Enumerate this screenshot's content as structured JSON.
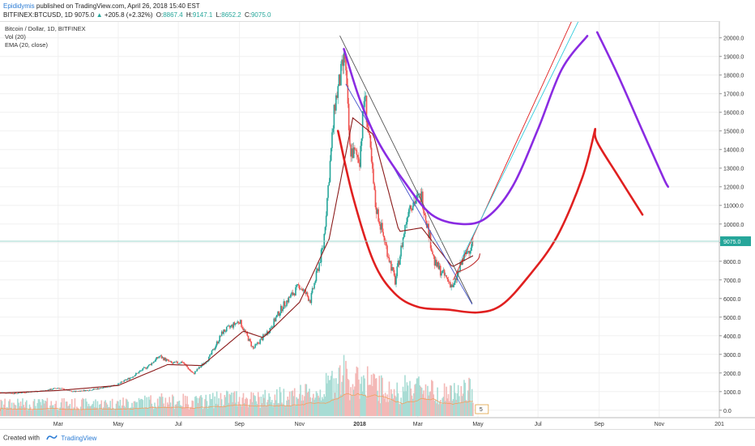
{
  "header": {
    "author": "Epididymis",
    "published_text": "published on TradingView.com, April 26, 2018 15:40 EST",
    "symbol": "BITFINEX:BTCUSD, 1D",
    "last": "9075.0",
    "change_arrow": "▲",
    "change": "+205.8 (+2.32%)",
    "open_label": "O:",
    "open": "8867.4",
    "high_label": "H:",
    "high": "9147.1",
    "low_label": "L:",
    "low": "8652.2",
    "close_label": "C:",
    "close": "9075.0"
  },
  "legend": {
    "title": "Bitcoin / Dollar, 1D, BITFINEX",
    "vol": "Vol (20)",
    "ema": "EMA (20, close)"
  },
  "footer": {
    "created_with": "Created with",
    "brand": "TradingView"
  },
  "colors": {
    "up": "#26a69a",
    "down": "#ef5350",
    "ema": "#8b1a1a",
    "purple": "#8a2be2",
    "red": "#e02020",
    "cyan": "#33ccdd",
    "price_label_bg": "#26a69a"
  },
  "chart_data": {
    "type": "candlestick",
    "symbol": "BITFINEX:BTCUSD",
    "interval": "1D",
    "y_ticks": [
      0,
      1000,
      2000,
      3000,
      4000,
      5000,
      6000,
      7000,
      8000,
      9000,
      10000,
      11000,
      12000,
      13000,
      14000,
      15000,
      16000,
      17000,
      18000,
      19000,
      20000
    ],
    "y_tick_labels": [
      "0.0",
      "1000.0",
      "2000.0",
      "3000.0",
      "4000.0",
      "5000.0",
      "6000.0",
      "7000.0",
      "8000.0",
      "9000.0",
      "10000.0",
      "11000.0",
      "12000.0",
      "13000.0",
      "14000.0",
      "15000.0",
      "16000.0",
      "17000.0",
      "18000.0",
      "19000.0",
      "20000.0"
    ],
    "ylim": [
      -400,
      20900
    ],
    "xlim": [
      "2017-01-01",
      "2019-01-01"
    ],
    "x_ticks": [
      {
        "label": "Mar",
        "date": "2017-03-01",
        "bold": false
      },
      {
        "label": "May",
        "date": "2017-05-01",
        "bold": false
      },
      {
        "label": "Jul",
        "date": "2017-07-01",
        "bold": false
      },
      {
        "label": "Sep",
        "date": "2017-09-01",
        "bold": false
      },
      {
        "label": "Nov",
        "date": "2017-11-01",
        "bold": false
      },
      {
        "label": "2018",
        "date": "2018-01-01",
        "bold": true
      },
      {
        "label": "Mar",
        "date": "2018-03-01",
        "bold": false
      },
      {
        "label": "May",
        "date": "2018-05-01",
        "bold": false
      },
      {
        "label": "Jul",
        "date": "2018-07-01",
        "bold": false
      },
      {
        "label": "Sep",
        "date": "2018-09-01",
        "bold": false
      },
      {
        "label": "Nov",
        "date": "2018-11-01",
        "bold": false
      },
      {
        "label": "201",
        "date": "2019-01-01",
        "bold": false
      }
    ],
    "last_price": 9075.0,
    "last_price_label": "9075.0",
    "price_path": [
      {
        "date": "2017-01-01",
        "price": 960
      },
      {
        "date": "2017-01-15",
        "price": 900
      },
      {
        "date": "2017-02-01",
        "price": 990
      },
      {
        "date": "2017-02-15",
        "price": 1050
      },
      {
        "date": "2017-03-01",
        "price": 1200
      },
      {
        "date": "2017-03-15",
        "price": 1000
      },
      {
        "date": "2017-04-01",
        "price": 1080
      },
      {
        "date": "2017-04-15",
        "price": 1200
      },
      {
        "date": "2017-05-01",
        "price": 1400
      },
      {
        "date": "2017-05-15",
        "price": 1800
      },
      {
        "date": "2017-06-01",
        "price": 2400
      },
      {
        "date": "2017-06-12",
        "price": 2900
      },
      {
        "date": "2017-06-25",
        "price": 2500
      },
      {
        "date": "2017-07-05",
        "price": 2600
      },
      {
        "date": "2017-07-16",
        "price": 1950
      },
      {
        "date": "2017-08-01",
        "price": 2800
      },
      {
        "date": "2017-08-15",
        "price": 4200
      },
      {
        "date": "2017-09-01",
        "price": 4800
      },
      {
        "date": "2017-09-15",
        "price": 3300
      },
      {
        "date": "2017-10-01",
        "price": 4300
      },
      {
        "date": "2017-10-15",
        "price": 5600
      },
      {
        "date": "2017-11-01",
        "price": 6700
      },
      {
        "date": "2017-11-12",
        "price": 5900
      },
      {
        "date": "2017-11-25",
        "price": 8800
      },
      {
        "date": "2017-12-07",
        "price": 16500
      },
      {
        "date": "2017-12-17",
        "price": 19000
      },
      {
        "date": "2017-12-22",
        "price": 14000
      },
      {
        "date": "2018-01-01",
        "price": 13500
      },
      {
        "date": "2018-01-06",
        "price": 17000
      },
      {
        "date": "2018-01-17",
        "price": 11000
      },
      {
        "date": "2018-02-06",
        "price": 6900
      },
      {
        "date": "2018-02-20",
        "price": 11000
      },
      {
        "date": "2018-03-05",
        "price": 11500
      },
      {
        "date": "2018-03-18",
        "price": 7900
      },
      {
        "date": "2018-04-06",
        "price": 6600
      },
      {
        "date": "2018-04-15",
        "price": 8000
      },
      {
        "date": "2018-04-26",
        "price": 9075
      }
    ],
    "ema_path": [
      {
        "date": "2017-01-01",
        "price": 920
      },
      {
        "date": "2017-03-01",
        "price": 1060
      },
      {
        "date": "2017-05-01",
        "price": 1330
      },
      {
        "date": "2017-06-20",
        "price": 2450
      },
      {
        "date": "2017-07-25",
        "price": 2400
      },
      {
        "date": "2017-09-05",
        "price": 4250
      },
      {
        "date": "2017-09-25",
        "price": 3900
      },
      {
        "date": "2017-11-01",
        "price": 5800
      },
      {
        "date": "2017-12-01",
        "price": 9200
      },
      {
        "date": "2017-12-25",
        "price": 15700
      },
      {
        "date": "2018-01-15",
        "price": 14800
      },
      {
        "date": "2018-02-10",
        "price": 9600
      },
      {
        "date": "2018-03-05",
        "price": 9800
      },
      {
        "date": "2018-04-05",
        "price": 7700
      },
      {
        "date": "2018-04-26",
        "price": 8300
      }
    ],
    "volume_series_max": 5000,
    "volume_scale_label": "5",
    "drawings": [
      {
        "name": "downtrend-line-dark",
        "color": "#555555",
        "points": [
          {
            "date": "2017-12-12",
            "price": 20100
          },
          {
            "date": "2018-04-25",
            "price": 5750
          }
        ]
      },
      {
        "name": "downtrend-line-blue",
        "color": "#4455cc",
        "points": [
          {
            "date": "2017-12-18",
            "price": 17500
          },
          {
            "date": "2018-04-25",
            "price": 5700
          }
        ]
      },
      {
        "name": "projection-line-red",
        "color": "#e02020",
        "points": [
          {
            "date": "2018-04-06",
            "price": 7000
          },
          {
            "date": "2018-08-05",
            "price": 21000
          }
        ]
      },
      {
        "name": "projection-line-cyan",
        "color": "#33ccdd",
        "points": [
          {
            "date": "2018-04-15",
            "price": 8200
          },
          {
            "date": "2018-08-12",
            "price": 21000
          }
        ]
      },
      {
        "name": "cup-curve-red",
        "color": "#e02020",
        "points": [
          {
            "date": "2017-12-10",
            "price": 15000
          },
          {
            "date": "2017-12-25",
            "price": 11500
          },
          {
            "date": "2018-01-15",
            "price": 8000
          },
          {
            "date": "2018-02-05",
            "price": 6300
          },
          {
            "date": "2018-03-01",
            "price": 5550
          },
          {
            "date": "2018-04-01",
            "price": 5400
          },
          {
            "date": "2018-05-01",
            "price": 5250
          },
          {
            "date": "2018-05-25",
            "price": 5650
          },
          {
            "date": "2018-06-20",
            "price": 7100
          },
          {
            "date": "2018-07-20",
            "price": 9300
          },
          {
            "date": "2018-08-15",
            "price": 12500
          },
          {
            "date": "2018-08-28",
            "price": 15100
          }
        ]
      },
      {
        "name": "cup-curve-purple",
        "color": "#8a2be2",
        "points": [
          {
            "date": "2017-12-16",
            "price": 19400
          },
          {
            "date": "2018-01-01",
            "price": 16700
          },
          {
            "date": "2018-01-20",
            "price": 14400
          },
          {
            "date": "2018-02-15",
            "price": 12300
          },
          {
            "date": "2018-03-15",
            "price": 10500
          },
          {
            "date": "2018-04-15",
            "price": 10000
          },
          {
            "date": "2018-05-10",
            "price": 10350
          },
          {
            "date": "2018-06-05",
            "price": 12000
          },
          {
            "date": "2018-07-01",
            "price": 15100
          },
          {
            "date": "2018-07-25",
            "price": 18300
          },
          {
            "date": "2018-08-20",
            "price": 20100
          }
        ]
      },
      {
        "name": "purple-decline",
        "color": "#8a2be2",
        "points": [
          {
            "date": "2018-08-30",
            "price": 20300
          },
          {
            "date": "2018-09-20",
            "price": 18000
          },
          {
            "date": "2018-10-15",
            "price": 15000
          },
          {
            "date": "2018-11-05",
            "price": 12500
          },
          {
            "date": "2018-11-10",
            "price": 12000
          }
        ]
      },
      {
        "name": "red-decline",
        "color": "#e02020",
        "points": [
          {
            "date": "2018-08-28",
            "price": 15100
          },
          {
            "date": "2018-08-30",
            "price": 14400
          },
          {
            "date": "2018-09-20",
            "price": 12600
          },
          {
            "date": "2018-10-15",
            "price": 10500
          }
        ]
      },
      {
        "name": "small-red-arc",
        "color": "#c03030",
        "points": [
          {
            "date": "2018-04-10",
            "price": 7400
          },
          {
            "date": "2018-04-22",
            "price": 7700
          },
          {
            "date": "2018-05-01",
            "price": 8100
          },
          {
            "date": "2018-05-03",
            "price": 8400
          }
        ]
      }
    ]
  }
}
